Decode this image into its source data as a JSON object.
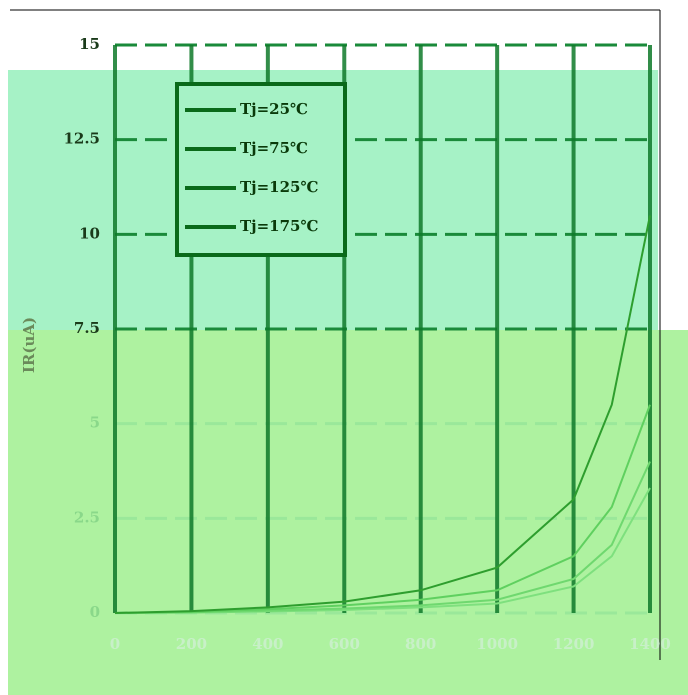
{
  "chart_data": {
    "type": "line",
    "ylabel": "IR(uA)",
    "x": [
      0,
      200,
      400,
      600,
      800,
      1000,
      1200,
      1300,
      1400
    ],
    "series": [
      {
        "name": "Tj=25℃",
        "color": "#7ee07e",
        "values": [
          0,
          0.01,
          0.04,
          0.08,
          0.15,
          0.25,
          0.7,
          1.5,
          3.3
        ]
      },
      {
        "name": "Tj=75℃",
        "color": "#6fd86f",
        "values": [
          0,
          0.02,
          0.06,
          0.12,
          0.2,
          0.35,
          0.9,
          1.8,
          4
        ]
      },
      {
        "name": "Tj=125℃",
        "color": "#5fd05f",
        "values": [
          0,
          0.03,
          0.1,
          0.2,
          0.35,
          0.6,
          1.5,
          2.8,
          5.5
        ]
      },
      {
        "name": "Tj=175℃",
        "color": "#2e9e2e",
        "values": [
          0,
          0.05,
          0.15,
          0.3,
          0.6,
          1.2,
          3.0,
          5.5,
          10.5
        ]
      }
    ],
    "xlim": [
      0,
      1400
    ],
    "xticks": [
      0,
      200,
      400,
      600,
      800,
      1000,
      1200,
      1400
    ],
    "ylim": [
      0,
      15
    ],
    "yticks": [
      0,
      2.5,
      5,
      7.5,
      10,
      12.5,
      15
    ],
    "grid": true
  }
}
